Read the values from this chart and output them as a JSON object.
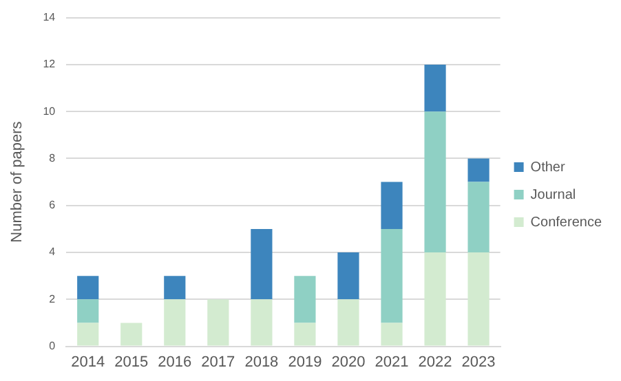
{
  "chart_data": {
    "type": "bar",
    "stacked": true,
    "ylabel": "Number of papers",
    "categories": [
      "2014",
      "2015",
      "2016",
      "2017",
      "2018",
      "2019",
      "2020",
      "2021",
      "2022",
      "2023"
    ],
    "series": [
      {
        "name": "Conference",
        "color": "#d3ebd0",
        "values": [
          1,
          1,
          2,
          2,
          2,
          1,
          2,
          1,
          4,
          4
        ]
      },
      {
        "name": "Journal",
        "color": "#8fd0c4",
        "values": [
          1,
          0,
          0,
          0,
          0,
          2,
          0,
          4,
          6,
          3
        ]
      },
      {
        "name": "Other",
        "color": "#3d85bd",
        "values": [
          1,
          0,
          1,
          0,
          3,
          0,
          2,
          2,
          2,
          1
        ]
      }
    ],
    "ylim": [
      0,
      14
    ],
    "yticks": [
      0,
      2,
      4,
      6,
      8,
      10,
      12,
      14
    ],
    "grid": "y",
    "legend": "right"
  }
}
